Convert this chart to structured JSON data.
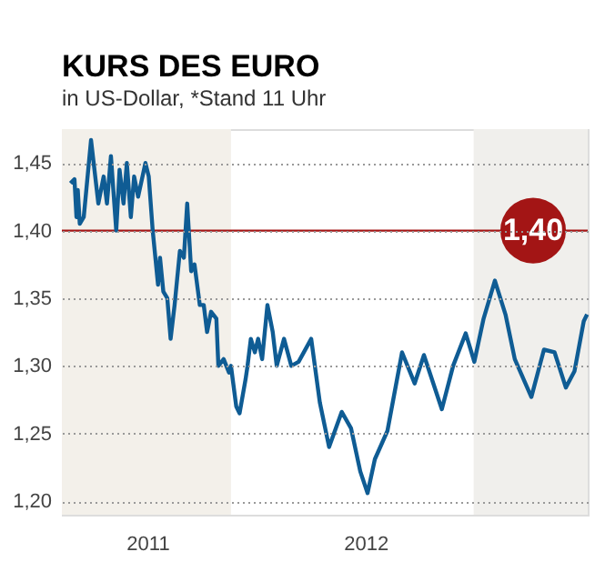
{
  "chart_data": {
    "type": "line",
    "title": "KURS DES EURO",
    "subtitle": "in US-Dollar, *Stand 11 Uhr",
    "x": [
      "2011-05-04",
      "2011-05-10",
      "2011-05-13",
      "2011-05-15",
      "2011-05-18",
      "2011-05-24",
      "2011-06-04",
      "2011-06-15",
      "2011-06-23",
      "2011-06-28",
      "2011-07-04",
      "2011-07-12",
      "2011-07-17",
      "2011-07-23",
      "2011-07-28",
      "2011-08-03",
      "2011-08-08",
      "2011-08-14",
      "2011-08-25",
      "2011-08-30",
      "2011-09-05",
      "2011-09-13",
      "2011-09-16",
      "2011-09-21",
      "2011-09-27",
      "2011-10-02",
      "2011-10-08",
      "2011-10-16",
      "2011-10-22",
      "2011-10-27",
      "2011-11-02",
      "2011-11-07",
      "2011-11-15",
      "2011-11-21",
      "2011-11-26",
      "2011-12-02",
      "2011-12-10",
      "2011-12-13",
      "2011-12-21",
      "2011-12-29",
      "2012-01-01",
      "2012-01-09",
      "2012-01-14",
      "2012-01-23",
      "2012-01-26",
      "2012-01-31",
      "2012-02-06",
      "2012-02-11",
      "2012-02-17",
      "2012-02-25",
      "2012-03-04",
      "2012-03-10",
      "2012-03-21",
      "2012-04-01",
      "2012-04-12",
      "2012-05-01",
      "2012-05-14",
      "2012-05-28",
      "2012-06-16",
      "2012-06-30",
      "2012-07-14",
      "2012-07-25",
      "2012-08-05",
      "2012-08-24",
      "2012-09-15",
      "2012-10-04",
      "2012-10-18",
      "2012-11-14",
      "2012-12-01",
      "2012-12-20",
      "2013-01-02",
      "2013-01-16",
      "2013-02-02",
      "2013-02-18",
      "2013-03-04",
      "2013-03-29",
      "2013-04-17",
      "2013-05-03",
      "2013-05-20",
      "2013-06-02",
      "2013-06-16",
      "2013-06-21"
    ],
    "series": [
      {
        "color": "#0f5c94",
        "values": [
          1.435,
          1.438,
          1.41,
          1.43,
          1.405,
          1.41,
          1.467,
          1.42,
          1.44,
          1.42,
          1.455,
          1.4,
          1.445,
          1.42,
          1.45,
          1.41,
          1.44,
          1.425,
          1.45,
          1.44,
          1.4,
          1.36,
          1.38,
          1.355,
          1.35,
          1.32,
          1.345,
          1.385,
          1.38,
          1.42,
          1.37,
          1.375,
          1.345,
          1.345,
          1.325,
          1.34,
          1.335,
          1.3,
          1.305,
          1.295,
          1.3,
          1.27,
          1.265,
          1.29,
          1.3,
          1.32,
          1.31,
          1.32,
          1.305,
          1.345,
          1.325,
          1.3,
          1.32,
          1.3,
          1.303,
          1.32,
          1.273,
          1.24,
          1.266,
          1.254,
          1.222,
          1.206,
          1.231,
          1.252,
          1.31,
          1.287,
          1.308,
          1.268,
          1.3,
          1.324,
          1.303,
          1.335,
          1.363,
          1.338,
          1.305,
          1.277,
          1.312,
          1.31,
          1.284,
          1.296,
          1.333,
          1.338
        ]
      }
    ],
    "xlim": [
      "2011-04-21",
      "2013-06-22"
    ],
    "xticks": [
      {
        "value": "2011-08-28",
        "label": "2011"
      },
      {
        "value": "2012-07-22",
        "label": "2012"
      }
    ],
    "ylim": [
      1.19,
      1.475
    ],
    "yticks": [
      {
        "value": 1.2,
        "label": "1,20"
      },
      {
        "value": 1.25,
        "label": "1,25"
      },
      {
        "value": 1.3,
        "label": "1,30"
      },
      {
        "value": 1.35,
        "label": "1,35"
      },
      {
        "value": 1.4,
        "label": "1,40"
      },
      {
        "value": 1.45,
        "label": "1,45"
      }
    ],
    "grid": "y",
    "ref_lines": [
      {
        "axis": "y",
        "value": 1.4,
        "label": "1,40",
        "color": "#a31515"
      }
    ],
    "bands": [
      {
        "axis": "x",
        "from": "2011-04-21",
        "to": "2012-01-01",
        "color": "#f3f0ea"
      },
      {
        "axis": "x",
        "from": "2013-01-01",
        "to": "2013-06-22",
        "color": "#f0efec"
      }
    ],
    "marker": "none",
    "line_style": "solid"
  }
}
